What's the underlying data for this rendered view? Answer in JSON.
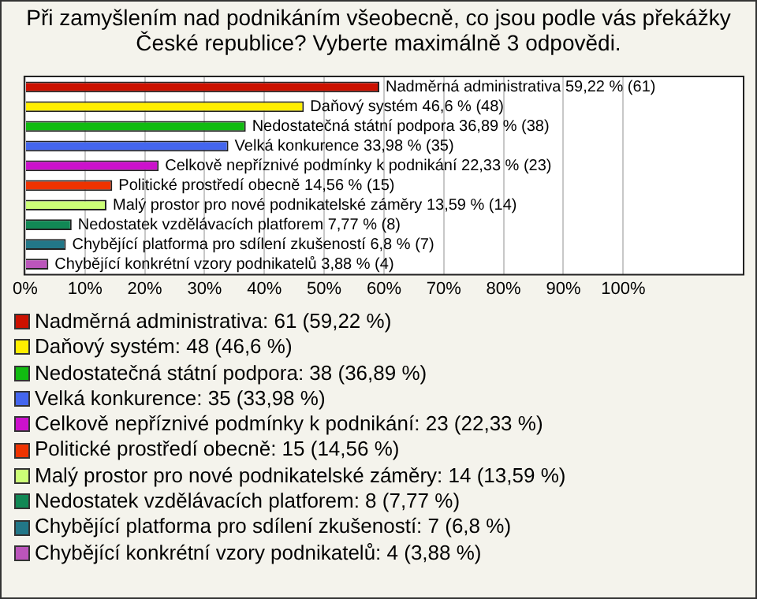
{
  "chart_data": {
    "type": "bar",
    "orientation": "horizontal",
    "stacked": true,
    "title": "Při zamyšlením nad podnikáním všeobecně, co jsou podle vás překážky České republice? Vyberte maximálně 3 odpovědi.",
    "categories": [
      null,
      null,
      null,
      null,
      null,
      null,
      null,
      null,
      null,
      null
    ],
    "xlim": [
      0,
      120
    ],
    "xticks": [
      {
        "value": 0,
        "label": "0%"
      },
      {
        "value": 10,
        "label": "10%"
      },
      {
        "value": 20,
        "label": "20%"
      },
      {
        "value": 30,
        "label": "30%"
      },
      {
        "value": 40,
        "label": "40%"
      },
      {
        "value": 50,
        "label": "50%"
      },
      {
        "value": 60,
        "label": "60%"
      },
      {
        "value": 70,
        "label": "70%"
      },
      {
        "value": 80,
        "label": "80%"
      },
      {
        "value": 90,
        "label": "90%"
      },
      {
        "value": 100,
        "label": "100%"
      }
    ],
    "grid": "x",
    "legend": "bottom",
    "series": [
      {
        "name": "Nadměrná administrativa: 61 (59,22 %)",
        "color": "#cc1100",
        "values": [
          59.22,
          null,
          null,
          null,
          null,
          null,
          null,
          null,
          null,
          null
        ],
        "value_labels": [
          "Nadměrná administrativa 59,22 % (61)",
          null,
          null,
          null,
          null,
          null,
          null,
          null,
          null,
          null
        ]
      },
      {
        "name": "Daňový systém: 48 (46,6 %)",
        "color": "#ffee00",
        "values": [
          null,
          46.6,
          null,
          null,
          null,
          null,
          null,
          null,
          null,
          null
        ],
        "value_labels": [
          null,
          "Daňový systém 46,6 % (48)",
          null,
          null,
          null,
          null,
          null,
          null,
          null,
          null
        ]
      },
      {
        "name": "Nedostatečná státní podpora: 38 (36,89 %)",
        "color": "#11bb11",
        "values": [
          null,
          null,
          36.89,
          null,
          null,
          null,
          null,
          null,
          null,
          null
        ],
        "value_labels": [
          null,
          null,
          "Nedostatečná státní podpora 36,89 % (38)",
          null,
          null,
          null,
          null,
          null,
          null,
          null
        ]
      },
      {
        "name": "Velká konkurence: 35 (33,98 %)",
        "color": "#4466ee",
        "values": [
          null,
          null,
          null,
          33.98,
          null,
          null,
          null,
          null,
          null,
          null
        ],
        "value_labels": [
          null,
          null,
          null,
          "Velká konkurence 33,98 % (35)",
          null,
          null,
          null,
          null,
          null,
          null
        ]
      },
      {
        "name": "Celkově nepříznivé podmínky k podnikání: 23 (22,33 %)",
        "color": "#cc11cc",
        "values": [
          null,
          null,
          null,
          null,
          22.33,
          null,
          null,
          null,
          null,
          null
        ],
        "value_labels": [
          null,
          null,
          null,
          null,
          "Celkově nepříznivé podmínky k podnikání 22,33 % (23)",
          null,
          null,
          null,
          null,
          null
        ]
      },
      {
        "name": "Politické prostředí obecně: 15 (14,56 %)",
        "color": "#ee3300",
        "values": [
          null,
          null,
          null,
          null,
          null,
          14.56,
          null,
          null,
          null,
          null
        ],
        "value_labels": [
          null,
          null,
          null,
          null,
          null,
          "Politické prostředí obecně 14,56 % (15)",
          null,
          null,
          null,
          null
        ]
      },
      {
        "name": "Malý prostor pro nové podnikatelské záměry: 14 (13,59 %)",
        "color": "#ccff77",
        "values": [
          null,
          null,
          null,
          null,
          null,
          null,
          13.59,
          null,
          null,
          null
        ],
        "value_labels": [
          null,
          null,
          null,
          null,
          null,
          null,
          "Malý prostor pro nové podnikatelské záměry 13,59 % (14)",
          null,
          null,
          null
        ]
      },
      {
        "name": "Nedostatek vzdělávacích platforem: 8 (7,77 %)",
        "color": "#118855",
        "values": [
          null,
          null,
          null,
          null,
          null,
          null,
          null,
          7.77,
          null,
          null
        ],
        "value_labels": [
          null,
          null,
          null,
          null,
          null,
          null,
          null,
          "Nedostatek vzdělávacích platforem 7,77 % (8)",
          null,
          null
        ]
      },
      {
        "name": "Chybějící platforma pro sdílení zkušeností: 7 (6,8 %)",
        "color": "#227788",
        "values": [
          null,
          null,
          null,
          null,
          null,
          null,
          null,
          null,
          6.8,
          null
        ],
        "value_labels": [
          null,
          null,
          null,
          null,
          null,
          null,
          null,
          null,
          "Chybějící platforma pro sdílení zkušeností 6,8 % (7)",
          null
        ]
      },
      {
        "name": "Chybějící konkrétní vzory podnikatelů: 4 (3,88 %)",
        "color": "#bb55bb",
        "values": [
          null,
          null,
          null,
          null,
          null,
          null,
          null,
          null,
          null,
          3.88
        ],
        "value_labels": [
          null,
          null,
          null,
          null,
          null,
          null,
          null,
          null,
          null,
          "Chybějící konkrétní vzory podnikatelů 3,88 % (4)"
        ]
      }
    ]
  }
}
